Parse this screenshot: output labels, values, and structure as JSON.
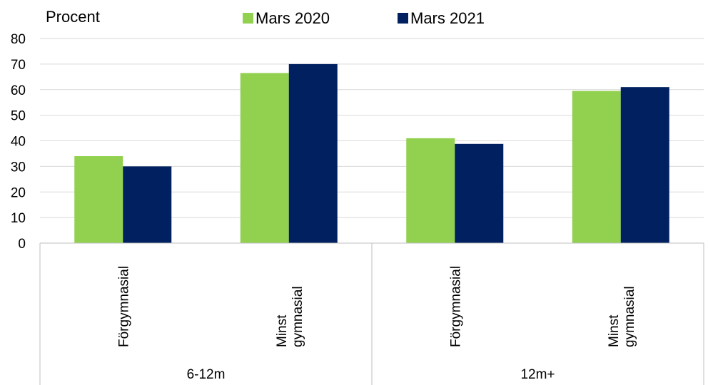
{
  "chart_data": {
    "type": "bar",
    "ylabel": "Procent",
    "ylim": [
      0,
      80
    ],
    "yticks": [
      0,
      10,
      20,
      30,
      40,
      50,
      60,
      70,
      80
    ],
    "grid": true,
    "legend_position": "top",
    "groups": [
      {
        "label": "6-12m",
        "categories": [
          [
            "Förgymnasial"
          ],
          [
            "Minst",
            "gymnasial"
          ]
        ]
      },
      {
        "label": "12m+",
        "categories": [
          [
            "Förgymnasial"
          ],
          [
            "Minst",
            "gymnasial"
          ]
        ]
      }
    ],
    "series": [
      {
        "name": "Mars 2020",
        "color": "#92d050",
        "values": [
          34,
          66.5,
          41,
          59.5
        ]
      },
      {
        "name": "Mars 2021",
        "color": "#002060",
        "values": [
          30,
          70,
          38.8,
          61
        ]
      }
    ]
  }
}
